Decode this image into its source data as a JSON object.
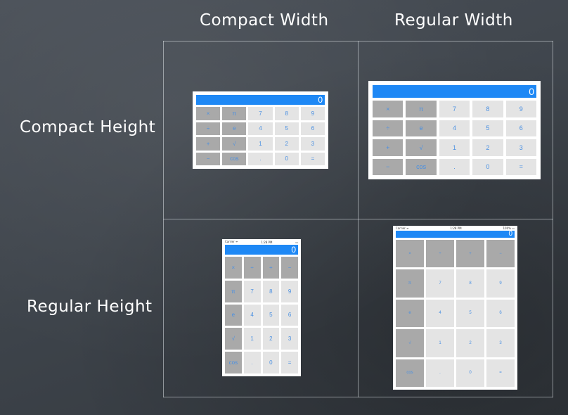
{
  "columns": [
    "Compact Width",
    "Regular Width"
  ],
  "rows": [
    "Compact Height",
    "Regular Height"
  ],
  "calculators": [
    {
      "id": "compact-width-compact-height",
      "status": null,
      "display": "0",
      "cols": 5,
      "rows": 4,
      "keys": [
        "×",
        "π",
        "7",
        "8",
        "9",
        "÷",
        "e",
        "4",
        "5",
        "6",
        "+",
        "√",
        "1",
        "2",
        "3",
        "−",
        "cos",
        ".",
        "0",
        "="
      ],
      "dark": [
        0,
        1,
        5,
        6,
        10,
        11,
        15,
        16
      ]
    },
    {
      "id": "regular-width-compact-height",
      "status": null,
      "display": "0",
      "cols": 5,
      "rows": 4,
      "keys": [
        "×",
        "π",
        "7",
        "8",
        "9",
        "÷",
        "e",
        "4",
        "5",
        "6",
        "+",
        "√",
        "1",
        "2",
        "3",
        "−",
        "cos",
        ".",
        "0",
        "="
      ],
      "dark": [
        0,
        1,
        5,
        6,
        10,
        11,
        15,
        16
      ]
    },
    {
      "id": "compact-width-regular-height",
      "status": {
        "left": "Carrier ᯤ",
        "center": "1:28 PM",
        "right": "▭"
      },
      "display": "0",
      "cols": 4,
      "rows": 5,
      "keys": [
        "×",
        "÷",
        "+",
        "−",
        "π",
        "7",
        "8",
        "9",
        "e",
        "4",
        "5",
        "6",
        "√",
        "1",
        "2",
        "3",
        "cos",
        ".",
        "0",
        "="
      ],
      "dark": [
        0,
        1,
        2,
        3,
        4,
        8,
        12,
        16
      ]
    },
    {
      "id": "regular-width-regular-height",
      "status": {
        "left": "Carrier ᯤ",
        "center": "1:28 PM",
        "right": "100% ▭"
      },
      "display": "0",
      "cols": 4,
      "rows": 5,
      "keys": [
        "×",
        "÷",
        "+",
        "−",
        "π",
        "7",
        "8",
        "9",
        "e",
        "4",
        "5",
        "6",
        "√",
        "1",
        "2",
        "3",
        "cos",
        ".",
        "0",
        "="
      ],
      "dark": [
        0,
        1,
        2,
        3,
        4,
        8,
        12,
        16
      ]
    }
  ]
}
